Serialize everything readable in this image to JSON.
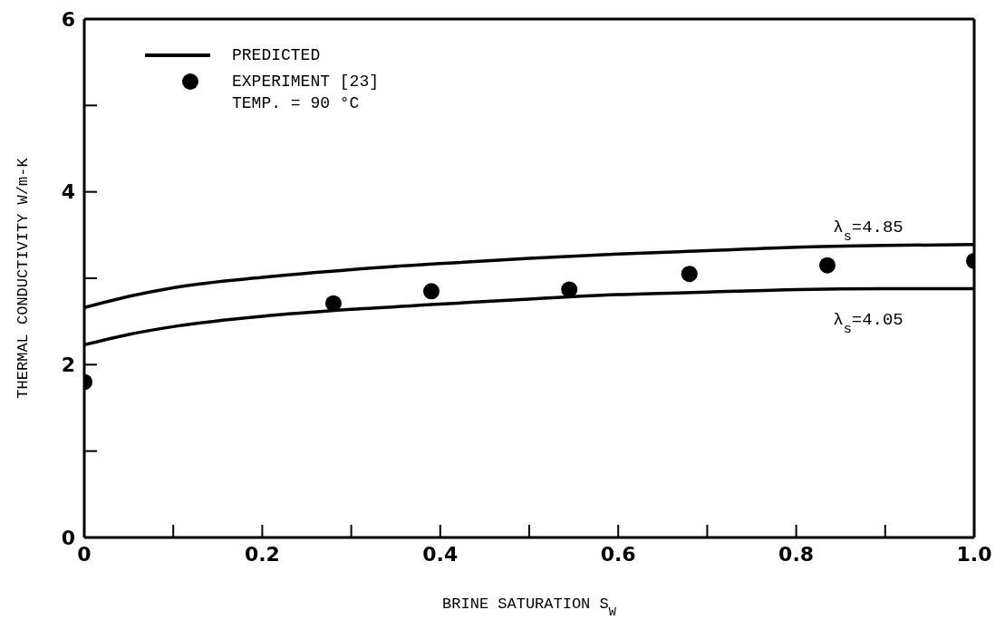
{
  "chart_data": {
    "type": "line",
    "xlabel": "BRINE SATURATION S$_{W}$",
    "ylabel": "THERMAL CONDUCTIVITY W/m-K",
    "xlim": [
      0,
      1
    ],
    "ylim": [
      0,
      6
    ],
    "xticks": [
      0,
      {
        "value": 0.1,
        "label": null
      },
      0.2,
      {
        "value": 0.3,
        "label": null
      },
      0.4,
      {
        "value": 0.5,
        "label": null
      },
      0.6,
      {
        "value": 0.7,
        "label": null
      },
      0.8,
      {
        "value": 0.9,
        "label": null
      },
      {
        "value": 1,
        "label": "1.0"
      }
    ],
    "yticks": [
      0,
      {
        "value": 1,
        "label": null
      },
      2,
      {
        "value": 3,
        "label": null
      },
      4,
      {
        "value": 5,
        "label": null
      },
      6
    ],
    "series": [
      {
        "name": "PREDICTED",
        "color": "#000000",
        "x": [
          0,
          0.05,
          0.1,
          0.2,
          0.3,
          0.4,
          0.5,
          0.6,
          0.7,
          0.8,
          0.9,
          1.0
        ],
        "values": [
          2.66,
          2.79,
          2.89,
          3.01,
          3.1,
          3.17,
          3.23,
          3.28,
          3.32,
          3.36,
          3.38,
          3.39
        ]
      },
      {
        "color": "#000000",
        "x": [
          0,
          0.05,
          0.1,
          0.2,
          0.3,
          0.4,
          0.5,
          0.6,
          0.7,
          0.8,
          0.9,
          1.0
        ],
        "values": [
          2.23,
          2.35,
          2.44,
          2.56,
          2.64,
          2.7,
          2.76,
          2.81,
          2.84,
          2.87,
          2.88,
          2.88
        ]
      },
      {
        "name": "EXPERIMENT [23]",
        "type": "scatter",
        "marker": "circle",
        "color": "#000000",
        "x": [
          0,
          0.28,
          0.39,
          0.545,
          0.68,
          0.835,
          1.0
        ],
        "values": [
          1.8,
          2.71,
          2.85,
          2.87,
          3.05,
          3.15,
          3.2
        ]
      }
    ],
    "line_style": "solid",
    "legend": "top left",
    "annotations": [
      "λ$_{s}$=4.85",
      "λ$_{s}$=4.05",
      "TEMP. = 90 °C"
    ]
  }
}
